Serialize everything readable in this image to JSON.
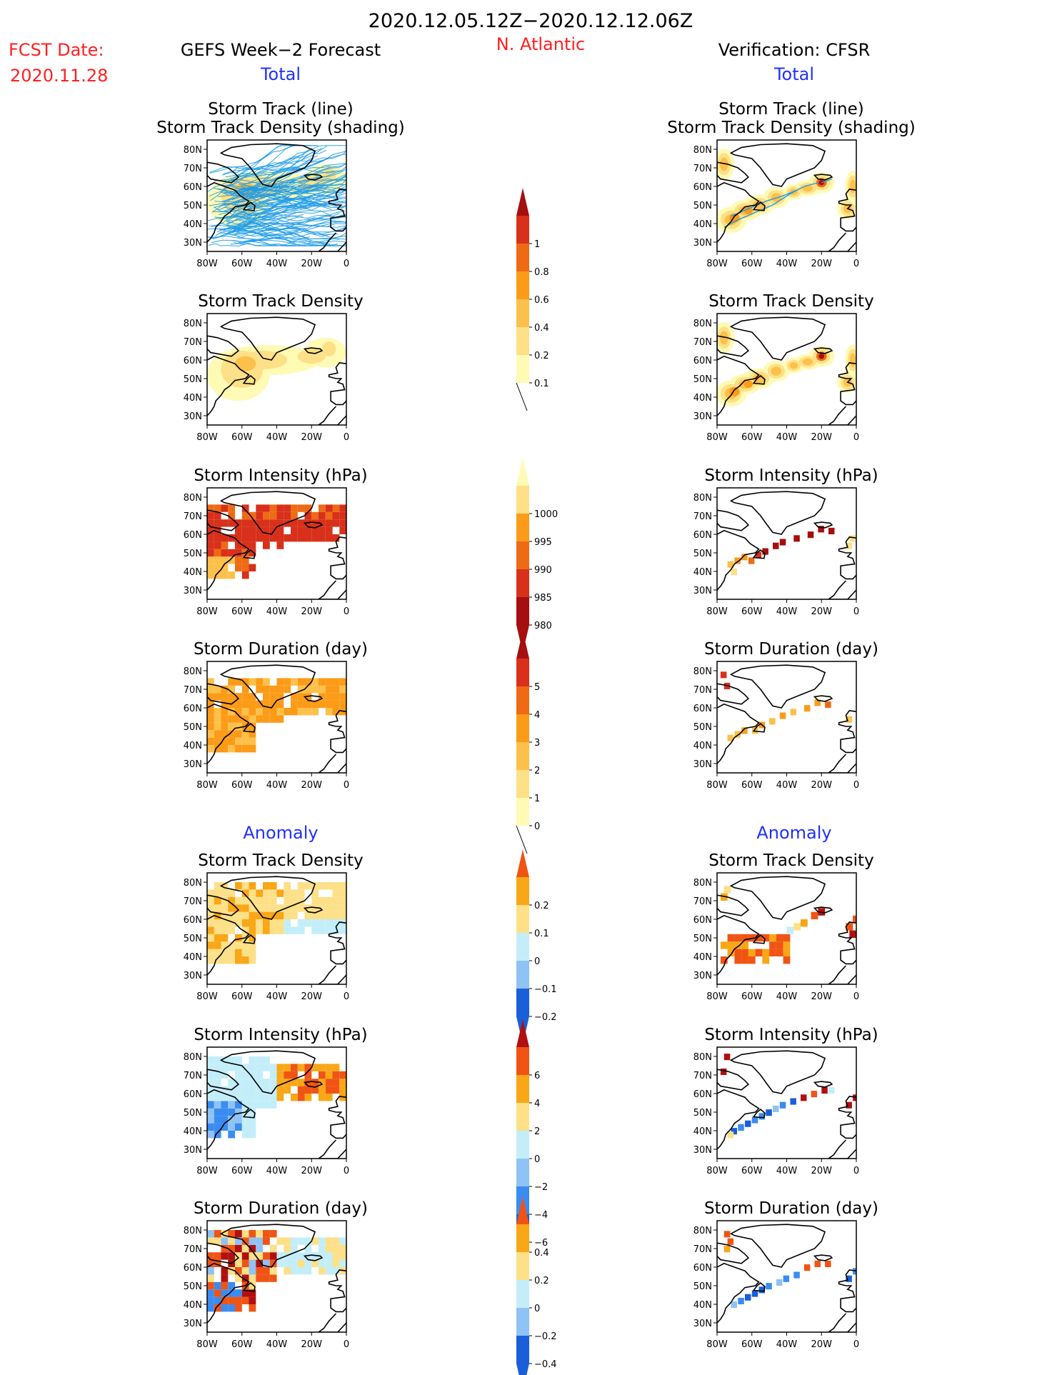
{
  "header": {
    "period": "2020.12.05.12Z−2020.12.12.06Z",
    "fcst_label": "FCST Date:",
    "fcst_date": "2020.11.28",
    "region": "N. Atlantic",
    "left_title": "GEFS Week−2 Forecast",
    "right_title": "Verification: CFSR",
    "total": "Total",
    "anomaly": "Anomaly"
  },
  "colors": {
    "accent_red": "#ff2020",
    "accent_blue": "#2030ff",
    "track_line": "#1e9be6",
    "seq_total": [
      "#fffab4",
      "#fde087",
      "#fdc04a",
      "#fc9b17",
      "#ee6a14",
      "#d8301a",
      "#a50f0f"
    ],
    "div_anom": [
      "#1a5fd8",
      "#3a8cf0",
      "#8fc2f5",
      "#c3eef9",
      "#fde087",
      "#f9a617",
      "#f05414",
      "#b01010"
    ]
  },
  "panel_titles": {
    "track_line": "Storm Track (line)",
    "track_density_shading": "Storm Track Density (shading)",
    "track_density": "Storm Track Density",
    "intensity": "Storm Intensity (hPa)",
    "duration": "Storm Duration (day)"
  },
  "axes": {
    "lat_ticks": [
      "80N",
      "70N",
      "60N",
      "50N",
      "40N",
      "30N"
    ],
    "lon_ticks": [
      "80W",
      "60W",
      "40W",
      "20W",
      "0"
    ]
  },
  "colorbars": {
    "track_density_total": [
      "1",
      "0.8",
      "0.6",
      "0.4",
      "0.2",
      "0.1"
    ],
    "intensity_total": [
      "1000",
      "995",
      "990",
      "985",
      "980"
    ],
    "duration_total": [
      "5",
      "4",
      "3",
      "2",
      "1",
      "0"
    ],
    "track_density_anom": [
      "0.2",
      "0.1",
      "0",
      "−0.1",
      "−0.2"
    ],
    "intensity_anom": [
      "6",
      "4",
      "2",
      "0",
      "−2",
      "−4",
      "−6"
    ],
    "duration_anom": [
      "0.4",
      "0.2",
      "0",
      "−0.2",
      "−0.4"
    ]
  },
  "chart_data": [
    {
      "type": "heatmap",
      "panel": "GEFS Total Storm Track (line) + Density (shading)",
      "xlim": [
        -80,
        0
      ],
      "ylim": [
        25,
        85
      ]
    },
    {
      "type": "heatmap",
      "panel": "CFSR Total Storm Track (line) + Density (shading)",
      "xlim": [
        -80,
        0
      ],
      "ylim": [
        25,
        85
      ]
    },
    {
      "type": "heatmap",
      "panel": "GEFS Total Storm Track Density",
      "levels": [
        0.1,
        0.2,
        0.4,
        0.6,
        0.8,
        1
      ]
    },
    {
      "type": "heatmap",
      "panel": "CFSR Total Storm Track Density",
      "levels": [
        0.1,
        0.2,
        0.4,
        0.6,
        0.8,
        1
      ]
    },
    {
      "type": "heatmap",
      "panel": "GEFS Total Storm Intensity (hPa)",
      "levels": [
        980,
        985,
        990,
        995,
        1000
      ]
    },
    {
      "type": "heatmap",
      "panel": "CFSR Total Storm Intensity (hPa)",
      "levels": [
        980,
        985,
        990,
        995,
        1000
      ]
    },
    {
      "type": "heatmap",
      "panel": "GEFS Total Storm Duration (day)",
      "levels": [
        0,
        1,
        2,
        3,
        4,
        5
      ]
    },
    {
      "type": "heatmap",
      "panel": "CFSR Total Storm Duration (day)",
      "levels": [
        0,
        1,
        2,
        3,
        4,
        5
      ]
    },
    {
      "type": "heatmap",
      "panel": "GEFS Anomaly Storm Track Density",
      "levels": [
        -0.2,
        -0.1,
        0,
        0.1,
        0.2
      ]
    },
    {
      "type": "heatmap",
      "panel": "CFSR Anomaly Storm Track Density",
      "levels": [
        -0.2,
        -0.1,
        0,
        0.1,
        0.2
      ]
    },
    {
      "type": "heatmap",
      "panel": "GEFS Anomaly Storm Intensity (hPa)",
      "levels": [
        -6,
        -4,
        -2,
        0,
        2,
        4,
        6
      ]
    },
    {
      "type": "heatmap",
      "panel": "CFSR Anomaly Storm Intensity (hPa)",
      "levels": [
        -6,
        -4,
        -2,
        0,
        2,
        4,
        6
      ]
    },
    {
      "type": "heatmap",
      "panel": "GEFS Anomaly Storm Duration (day)",
      "levels": [
        -0.4,
        -0.2,
        0,
        0.2,
        0.4
      ]
    },
    {
      "type": "heatmap",
      "panel": "CFSR Anomaly Storm Duration (day)",
      "levels": [
        -0.4,
        -0.2,
        0,
        0.2,
        0.4
      ]
    }
  ]
}
